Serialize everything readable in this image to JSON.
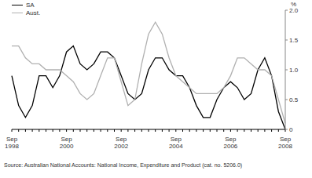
{
  "chart_data": {
    "type": "line",
    "ylabel": "%",
    "source": "Source: Australian National Accounts: National Income, Expenditure and Product (cat. no. 5206.0)",
    "categories": [
      "Sep 1998",
      null,
      null,
      null,
      null,
      null,
      null,
      null,
      "Sep 2000",
      null,
      null,
      null,
      null,
      null,
      null,
      null,
      "Sep 2002",
      null,
      null,
      null,
      null,
      null,
      null,
      null,
      "Sep 2004",
      null,
      null,
      null,
      null,
      null,
      null,
      null,
      "Sep 2006",
      null,
      null,
      null,
      null,
      null,
      null,
      null,
      "Sep 2008"
    ],
    "series": [
      {
        "name": "SA",
        "color": "#000000",
        "values": [
          0.9,
          0.4,
          0.2,
          0.4,
          0.9,
          0.9,
          0.7,
          0.9,
          1.3,
          1.4,
          1.1,
          1.0,
          1.1,
          1.3,
          1.3,
          1.2,
          0.9,
          0.6,
          0.5,
          0.6,
          1.0,
          1.2,
          1.2,
          1.0,
          0.9,
          0.9,
          0.7,
          0.4,
          0.2,
          0.2,
          0.5,
          0.7,
          0.8,
          0.7,
          0.5,
          0.6,
          1.0,
          1.2,
          0.9,
          0.3,
          0.0
        ]
      },
      {
        "name": "Aust.",
        "color": "#b0b0b0",
        "values": [
          1.4,
          1.4,
          1.2,
          1.1,
          1.1,
          1.0,
          1.0,
          1.0,
          0.9,
          0.8,
          0.6,
          0.5,
          0.6,
          0.9,
          1.2,
          1.2,
          0.8,
          0.4,
          0.5,
          1.1,
          1.6,
          1.8,
          1.6,
          1.2,
          0.9,
          0.8,
          0.7,
          0.6,
          0.6,
          0.6,
          0.6,
          0.7,
          0.9,
          1.2,
          1.2,
          1.1,
          1.0,
          1.0,
          0.9,
          0.5,
          0.1
        ]
      }
    ],
    "ylim": [
      0,
      2
    ],
    "yticks": [
      0,
      0.5,
      {
        "value": 1,
        "label": "1.0"
      },
      1.5,
      {
        "value": 2,
        "label": "2.0"
      }
    ],
    "legend": "upper left"
  }
}
